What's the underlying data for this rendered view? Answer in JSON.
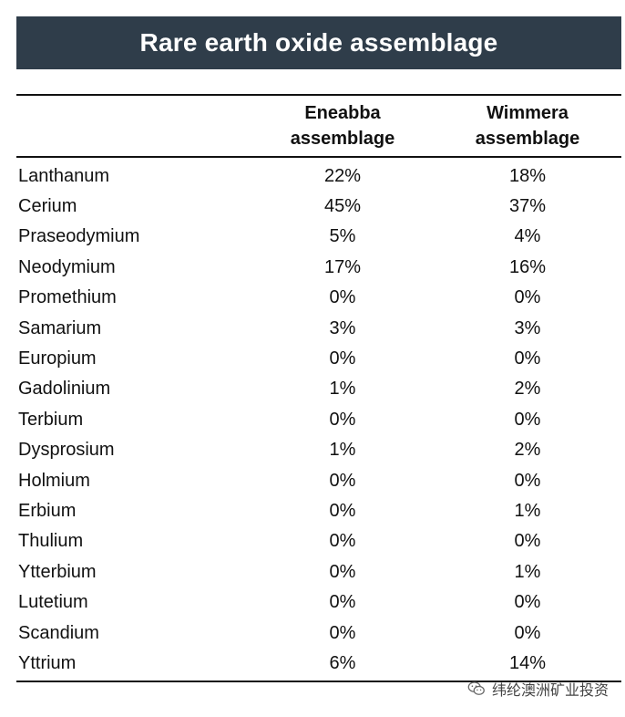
{
  "title": "Rare earth oxide assemblage",
  "chart_data": {
    "type": "table",
    "columns": [
      {
        "name_line1": "Eneabba",
        "name_line2": "assemblage"
      },
      {
        "name_line1": "Wimmera",
        "name_line2": "assemblage"
      }
    ],
    "rows": [
      {
        "element": "Lanthanum",
        "a": "22%",
        "b": "18%"
      },
      {
        "element": "Cerium",
        "a": "45%",
        "b": "37%"
      },
      {
        "element": "Praseodymium",
        "a": "5%",
        "b": "4%"
      },
      {
        "element": "Neodymium",
        "a": "17%",
        "b": "16%"
      },
      {
        "element": "Promethium",
        "a": "0%",
        "b": "0%"
      },
      {
        "element": "Samarium",
        "a": "3%",
        "b": "3%"
      },
      {
        "element": "Europium",
        "a": "0%",
        "b": "0%"
      },
      {
        "element": "Gadolinium",
        "a": "1%",
        "b": "2%"
      },
      {
        "element": "Terbium",
        "a": "0%",
        "b": "0%"
      },
      {
        "element": "Dysprosium",
        "a": "1%",
        "b": "2%"
      },
      {
        "element": "Holmium",
        "a": "0%",
        "b": "0%"
      },
      {
        "element": "Erbium",
        "a": "0%",
        "b": "1%"
      },
      {
        "element": "Thulium",
        "a": "0%",
        "b": "0%"
      },
      {
        "element": "Ytterbium",
        "a": "0%",
        "b": "1%"
      },
      {
        "element": "Lutetium",
        "a": "0%",
        "b": "0%"
      },
      {
        "element": "Scandium",
        "a": "0%",
        "b": "0%"
      },
      {
        "element": "Yttrium",
        "a": "6%",
        "b": "14%"
      }
    ]
  },
  "watermark": {
    "text": "纬纶澳洲矿业投资",
    "icon": "wechat-icon"
  }
}
